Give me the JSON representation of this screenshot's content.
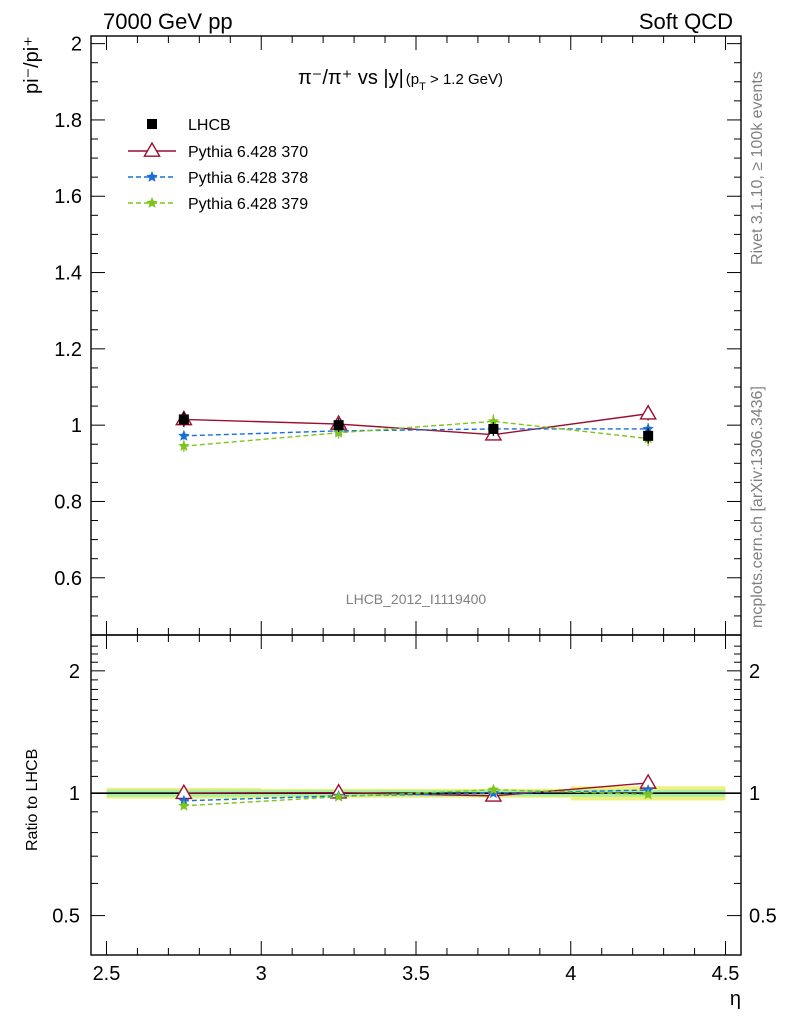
{
  "header": {
    "left": "7000 GeV pp",
    "right": "Soft QCD"
  },
  "side_text": {
    "rivet": "Rivet 3.1.10, ≥ 100k events",
    "mcplots": "mcplots.cern.ch [arXiv:1306.3436]"
  },
  "analysis_id": "LHCB_2012_I1119400",
  "colors": {
    "data": "#000000",
    "p370": "#9a0f2f",
    "p378": "#1a6fd6",
    "p379": "#7fc41c",
    "band_outer": "#f0f07a",
    "band_inner": "#a6f0a6"
  },
  "chart_data": [
    {
      "type": "scatter",
      "panel": "main",
      "title_main": "π⁻/π⁺ vs |y|",
      "title_sub": "(p",
      "title_sub_idx": "T",
      "title_sub_end": " > 1.2 GeV)",
      "ylabel": "pi⁻/pi⁺",
      "ylim": [
        0.45,
        2.02
      ],
      "xlim": [
        2.45,
        4.55
      ],
      "yticks": [
        0.6,
        0.8,
        1.0,
        1.2,
        1.4,
        1.6,
        1.8,
        2.0
      ],
      "ytick_labels": [
        "0.6",
        "0.8",
        "1",
        "1.2",
        "1.4",
        "1.6",
        "1.8",
        "2"
      ],
      "legend_position": "top-left",
      "x": [
        2.75,
        3.25,
        3.75,
        4.25
      ],
      "series": [
        {
          "name": "LHCB",
          "values": [
            1.015,
            1.0,
            0.99,
            0.972
          ],
          "errors": [
            0.02,
            0.018,
            0.018,
            0.02
          ]
        },
        {
          "name": "Pythia 6.428 370",
          "values": [
            1.015,
            1.003,
            0.975,
            1.03
          ],
          "errors": [
            0.012,
            0.012,
            0.012,
            0.018
          ]
        },
        {
          "name": "Pythia 6.428 378",
          "values": [
            0.972,
            0.985,
            0.99,
            0.99
          ],
          "errors": [
            0.01,
            0.01,
            0.01,
            0.015
          ]
        },
        {
          "name": "Pythia 6.428 379",
          "values": [
            0.945,
            0.98,
            1.01,
            0.965
          ],
          "errors": [
            0.015,
            0.015,
            0.018,
            0.02
          ]
        }
      ]
    },
    {
      "type": "line",
      "panel": "ratio",
      "ylabel": "Ratio to LHCB",
      "xlabel": "η",
      "log_y": true,
      "ylim": [
        0.4,
        2.45
      ],
      "xlim": [
        2.45,
        4.55
      ],
      "yticks": [
        0.5,
        1,
        2
      ],
      "ytick_labels": [
        "0.5",
        "1",
        "2"
      ],
      "xticks": [
        2.5,
        3,
        3.5,
        4,
        4.5
      ],
      "xtick_labels": [
        "2.5",
        "3",
        "3.5",
        "4",
        "4.5"
      ],
      "x": [
        2.75,
        3.25,
        3.75,
        4.25
      ],
      "band_edges": [
        2.5,
        3.0,
        3.5,
        4.0,
        4.5
      ],
      "band_outer": [
        0.03,
        0.025,
        0.025,
        0.04
      ],
      "band_inner": [
        0.02,
        0.018,
        0.018,
        0.02
      ],
      "series": [
        {
          "name": "Pythia 6.428 370",
          "values": [
            1.0,
            1.003,
            0.985,
            1.06
          ]
        },
        {
          "name": "Pythia 6.428 378",
          "values": [
            0.958,
            0.985,
            1.0,
            1.018
          ]
        },
        {
          "name": "Pythia 6.428 379",
          "values": [
            0.931,
            0.98,
            1.02,
            0.993
          ]
        }
      ]
    }
  ]
}
